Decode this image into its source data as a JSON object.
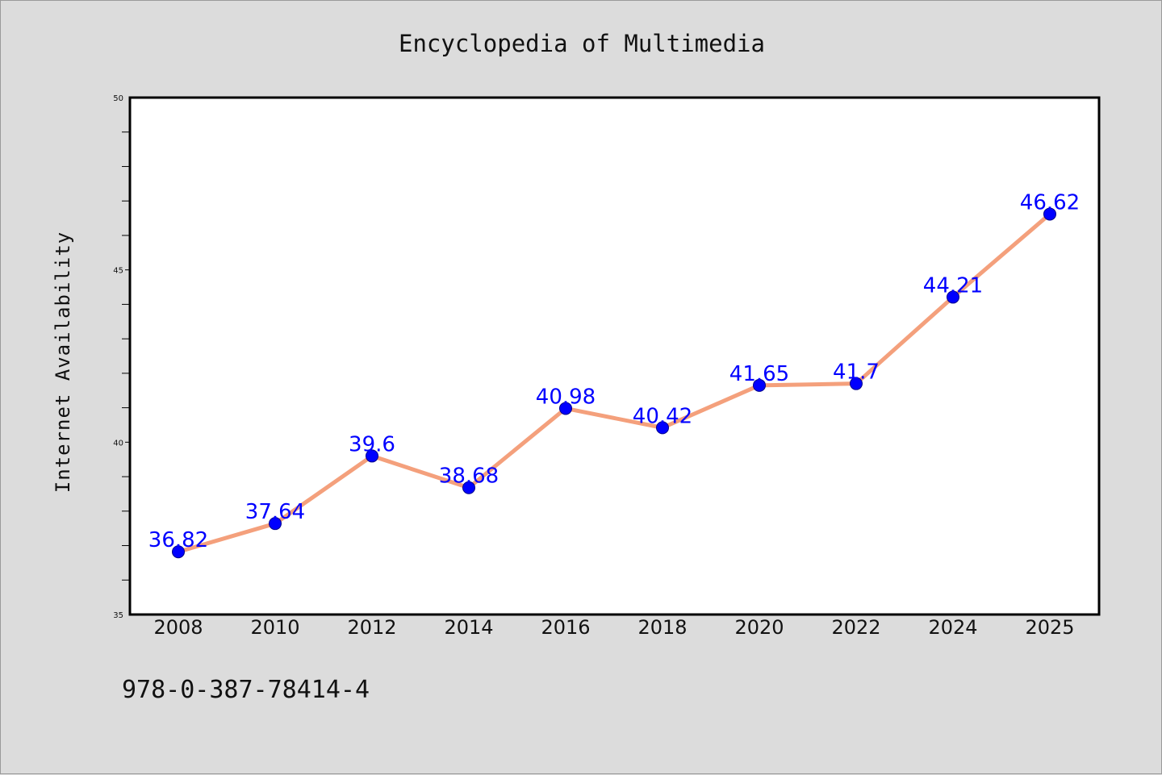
{
  "chart_data": {
    "type": "line",
    "title": "Encyclopedia of Multimedia",
    "xlabel": "",
    "ylabel": "Internet Availability",
    "categories": [
      "2008",
      "2010",
      "2012",
      "2014",
      "2016",
      "2018",
      "2020",
      "2022",
      "2024",
      "2025"
    ],
    "series": [
      {
        "values": [
          36.82,
          37.64,
          39.6,
          38.68,
          40.98,
          40.42,
          41.65,
          41.7,
          44.21,
          46.62
        ],
        "line_color": "#f4a07c",
        "marker_color": "#0000ff",
        "label_color": "#0000ff"
      }
    ],
    "data_labels": [
      "36.82",
      "37.64",
      "39.6",
      "38.68",
      "40.98",
      "40.42",
      "41.65",
      "41.7",
      "44.21",
      "46.62"
    ],
    "ylim": [
      35,
      50
    ],
    "yticks": [
      "35",
      "40",
      "45",
      "50"
    ],
    "grid": false,
    "legend": "none"
  },
  "footer": {
    "isbn": "978-0-387-78414-4"
  },
  "colors": {
    "background": "#dcdcdc",
    "plot_area": "#ffffff",
    "line": "#f4a07c",
    "marker": "#0000ff",
    "label": "#0000ff"
  }
}
